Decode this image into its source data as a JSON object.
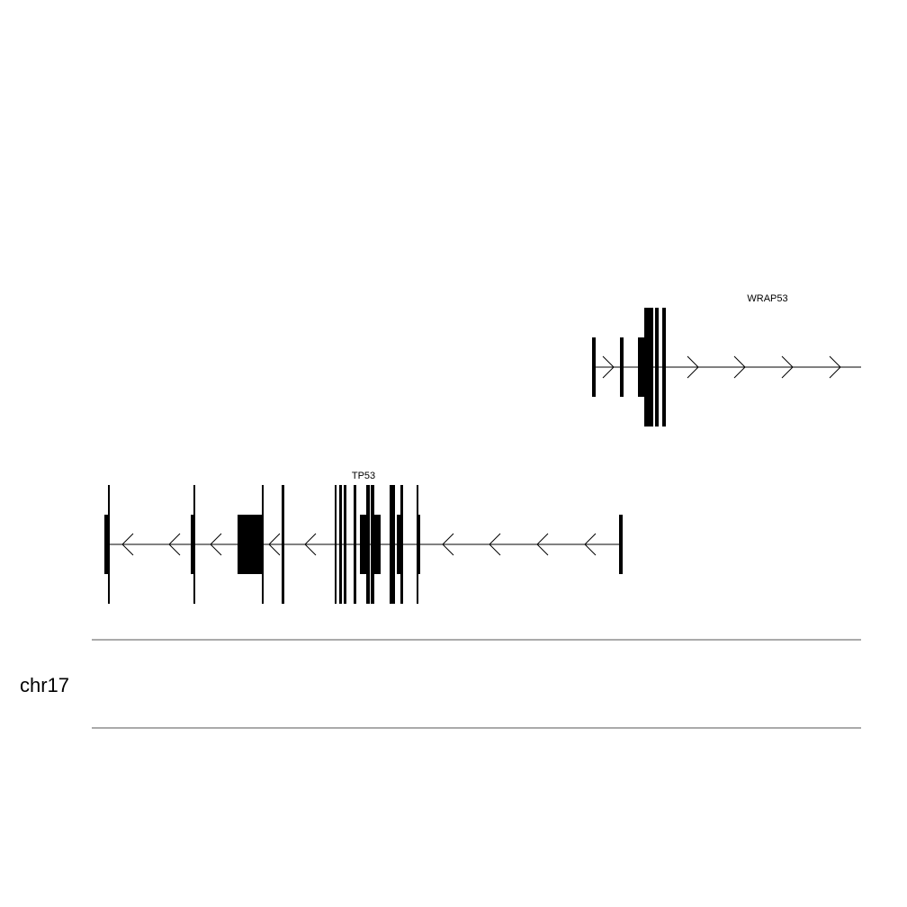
{
  "chromosome": {
    "name": "chr17"
  },
  "genes": [
    {
      "name": "WRAP53",
      "strand": "+"
    },
    {
      "name": "TP53",
      "strand": "-"
    }
  ],
  "colors": {
    "feature": "#000000",
    "ideogram_line": "#555555"
  }
}
